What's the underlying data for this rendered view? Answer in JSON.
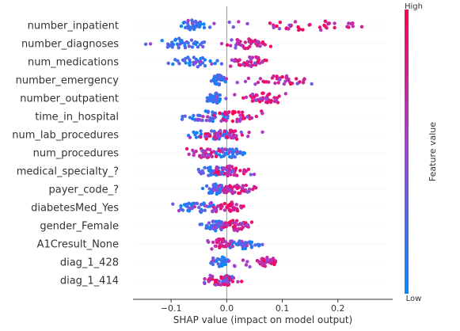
{
  "chart_data": {
    "type": "scatter",
    "title": "",
    "xlabel": "SHAP value (impact on model output)",
    "ylabel": "",
    "xlim": [
      -0.16,
      0.29
    ],
    "x_ticks": [
      -0.1,
      0.0,
      0.1,
      0.2
    ],
    "x_tick_labels": [
      "−0.1",
      "0.0",
      "0.1",
      "0.2"
    ],
    "zero_line": 0.0,
    "grid": false,
    "colorbar": {
      "title": "Feature value",
      "high_label": "High",
      "low_label": "Low",
      "low_color": "#008bfb",
      "high_color": "#ff0052",
      "placement": "right"
    },
    "features": [
      {
        "name": "number_inpatient",
        "shap_range": [
          -0.09,
          0.27
        ],
        "low_shap_range": [
          -0.09,
          -0.03
        ],
        "high_shap_range": [
          0.03,
          0.27
        ]
      },
      {
        "name": "number_diagnoses",
        "shap_range": [
          -0.15,
          0.09
        ],
        "low_shap_range": [
          -0.15,
          -0.01
        ],
        "high_shap_range": [
          -0.01,
          0.08
        ]
      },
      {
        "name": "num_medications",
        "shap_range": [
          -0.11,
          0.09
        ],
        "low_shap_range": [
          -0.11,
          0.0
        ],
        "high_shap_range": [
          0.0,
          0.09
        ]
      },
      {
        "name": "number_emergency",
        "shap_range": [
          -0.03,
          0.18
        ],
        "low_shap_range": [
          -0.03,
          0.0
        ],
        "high_shap_range": [
          0.02,
          0.18
        ]
      },
      {
        "name": "number_outpatient",
        "shap_range": [
          -0.04,
          0.12
        ],
        "low_shap_range": [
          -0.04,
          0.0
        ],
        "high_shap_range": [
          0.02,
          0.12
        ]
      },
      {
        "name": "time_in_hospital",
        "shap_range": [
          -0.09,
          0.07
        ],
        "low_shap_range": [
          -0.09,
          0.02
        ],
        "high_shap_range": [
          -0.04,
          0.07
        ]
      },
      {
        "name": "num_lab_procedures",
        "shap_range": [
          -0.09,
          0.07
        ],
        "low_shap_range": [
          -0.09,
          0.03
        ],
        "high_shap_range": [
          -0.07,
          0.05
        ]
      },
      {
        "name": "num_procedures",
        "shap_range": [
          -0.08,
          0.05
        ],
        "low_shap_range": [
          -0.04,
          0.05
        ],
        "high_shap_range": [
          -0.08,
          0.01
        ]
      },
      {
        "name": "medical_specialty_?",
        "shap_range": [
          -0.06,
          0.05
        ],
        "low_shap_range": [
          -0.06,
          0.01
        ],
        "high_shap_range": [
          -0.03,
          0.05
        ]
      },
      {
        "name": "payer_code_?",
        "shap_range": [
          -0.05,
          0.06
        ],
        "low_shap_range": [
          -0.05,
          0.01
        ],
        "high_shap_range": [
          -0.02,
          0.06
        ]
      },
      {
        "name": "diabetesMed_Yes",
        "shap_range": [
          -0.1,
          0.05
        ],
        "low_shap_range": [
          -0.1,
          -0.01
        ],
        "high_shap_range": [
          -0.03,
          0.05
        ]
      },
      {
        "name": "gender_Female",
        "shap_range": [
          -0.05,
          0.05
        ],
        "low_shap_range": [
          -0.05,
          0.01
        ],
        "high_shap_range": [
          -0.02,
          0.05
        ]
      },
      {
        "name": "A1Cresult_None",
        "shap_range": [
          -0.04,
          0.07
        ],
        "low_shap_range": [
          -0.01,
          0.07
        ],
        "high_shap_range": [
          -0.04,
          0.02
        ]
      },
      {
        "name": "diag_1_428",
        "shap_range": [
          -0.03,
          0.1
        ],
        "low_shap_range": [
          -0.03,
          0.01
        ],
        "high_shap_range": [
          0.05,
          0.1
        ]
      },
      {
        "name": "diag_1_414",
        "shap_range": [
          -0.05,
          0.03
        ],
        "low_shap_range": [
          -0.01,
          0.01
        ],
        "high_shap_range": [
          -0.05,
          0.03
        ]
      }
    ]
  }
}
